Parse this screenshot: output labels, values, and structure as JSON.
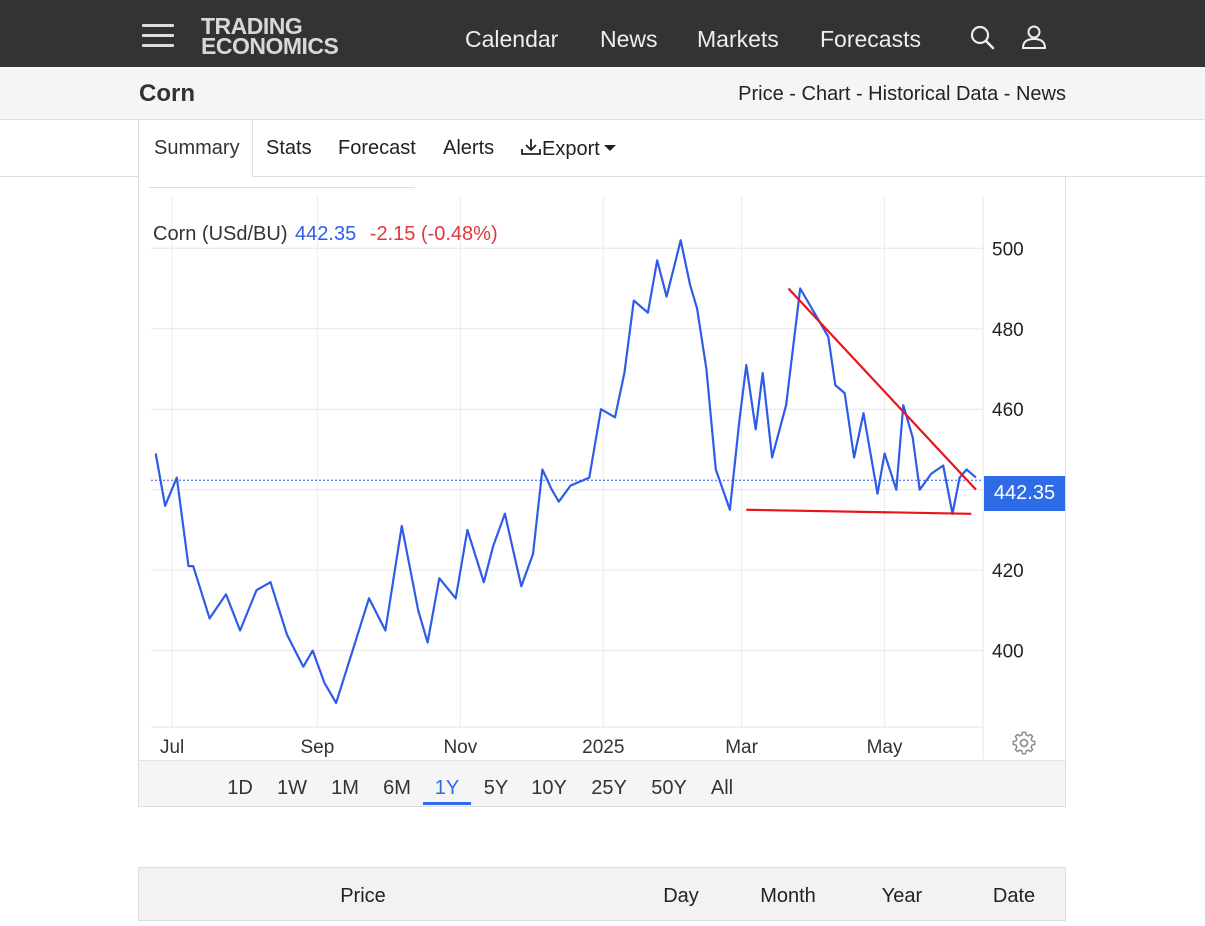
{
  "topbar": {
    "logo_line1": "TRADING",
    "logo_line2": "ECONOMICS",
    "nav": [
      "Calendar",
      "News",
      "Markets",
      "Forecasts"
    ],
    "icons": [
      "search-icon",
      "user-icon"
    ]
  },
  "subheader": {
    "title": "Corn",
    "links": "Price - Chart - Historical Data - News"
  },
  "tabs": [
    "Summary",
    "Stats",
    "Forecast",
    "Alerts",
    "Export"
  ],
  "chart": {
    "legend_name": "Corn (USd/BU)",
    "legend_price": "442.35",
    "legend_change": "-2.15 (-0.48%)",
    "price_tag": "442.35",
    "colors": {
      "line": "#2e5ce6",
      "trend": "#e8141c",
      "tag": "#2e6be6",
      "change": "#e0383e"
    }
  },
  "chart_data": {
    "type": "line",
    "series": [
      {
        "name": "Corn (USd/BU)",
        "x": [
          "2024-06-24",
          "2024-06-28",
          "2024-07-03",
          "2024-07-08",
          "2024-07-10",
          "2024-07-17",
          "2024-07-24",
          "2024-07-30",
          "2024-08-06",
          "2024-08-12",
          "2024-08-19",
          "2024-08-26",
          "2024-08-30",
          "2024-09-04",
          "2024-09-09",
          "2024-09-16",
          "2024-09-23",
          "2024-09-30",
          "2024-10-07",
          "2024-10-14",
          "2024-10-18",
          "2024-10-23",
          "2024-10-30",
          "2024-11-04",
          "2024-11-11",
          "2024-11-15",
          "2024-11-20",
          "2024-11-27",
          "2024-12-02",
          "2024-12-06",
          "2024-12-10",
          "2024-12-13",
          "2024-12-18",
          "2024-12-26",
          "2024-12-31",
          "2025-01-06",
          "2025-01-10",
          "2025-01-14",
          "2025-01-20",
          "2025-01-24",
          "2025-01-28",
          "2025-02-03",
          "2025-02-07",
          "2025-02-10",
          "2025-02-14",
          "2025-02-18",
          "2025-02-24",
          "2025-02-28",
          "2025-03-03",
          "2025-03-07",
          "2025-03-10",
          "2025-03-14",
          "2025-03-20",
          "2025-03-26",
          "2025-04-01",
          "2025-04-07",
          "2025-04-10",
          "2025-04-14",
          "2025-04-18",
          "2025-04-22",
          "2025-04-28",
          "2025-05-01",
          "2025-05-06",
          "2025-05-09",
          "2025-05-13",
          "2025-05-16",
          "2025-05-21",
          "2025-05-26",
          "2025-05-30",
          "2025-06-02",
          "2025-06-05",
          "2025-06-09"
        ],
        "values": [
          449,
          436,
          443,
          421,
          421,
          408,
          414,
          405,
          415,
          417,
          404,
          396,
          400,
          392,
          387,
          400,
          413,
          405,
          431,
          410,
          402,
          418,
          413,
          430,
          417,
          426,
          434,
          416,
          424,
          445,
          440,
          437,
          441,
          443,
          460,
          458,
          469,
          487,
          484,
          497,
          488,
          502,
          491,
          485,
          470,
          445,
          435,
          457,
          471,
          455,
          469,
          448,
          461,
          490,
          484,
          478,
          466,
          464,
          448,
          459,
          439,
          449,
          440,
          461,
          453,
          440,
          444,
          446,
          434,
          443,
          445,
          443
        ]
      }
    ],
    "trendlines": [
      {
        "from": [
          "2025-03-21",
          490
        ],
        "to": [
          "2025-06-09",
          440
        ]
      },
      {
        "from": [
          "2025-03-03",
          435
        ],
        "to": [
          "2025-06-07",
          434
        ]
      }
    ],
    "x_ticks": [
      "Jul",
      "Sep",
      "Nov",
      "2025",
      "Mar",
      "May"
    ],
    "y_ticks": [
      400,
      420,
      460,
      480,
      500
    ],
    "ylim": [
      381,
      513
    ],
    "last_value": 442.35,
    "grid": true
  },
  "ranges": [
    "1D",
    "1W",
    "1M",
    "6M",
    "1Y",
    "5Y",
    "10Y",
    "25Y",
    "50Y",
    "All"
  ],
  "active_range": "1Y",
  "table": {
    "headers": [
      "Price",
      "Day",
      "Month",
      "Year",
      "Date"
    ]
  }
}
